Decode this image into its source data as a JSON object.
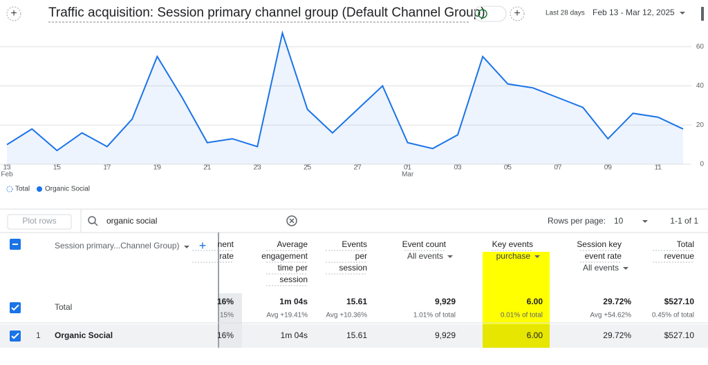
{
  "header": {
    "title": "Traffic acquisition: Session primary channel group (Default Channel Group)",
    "date_preset": "Last 28 days",
    "date_range": "Feb 13 - Mar 12, 2025"
  },
  "chart_data": {
    "type": "line",
    "categories": [
      {
        "day": "13",
        "month": "Feb"
      },
      null,
      {
        "day": "15"
      },
      null,
      {
        "day": "17"
      },
      null,
      {
        "day": "19"
      },
      null,
      {
        "day": "21"
      },
      null,
      {
        "day": "23"
      },
      null,
      {
        "day": "25"
      },
      null,
      {
        "day": "27"
      },
      null,
      {
        "day": "01",
        "month": "Mar"
      },
      null,
      {
        "day": "03"
      },
      null,
      {
        "day": "05"
      },
      null,
      {
        "day": "07"
      },
      null,
      {
        "day": "09"
      },
      null,
      {
        "day": "11"
      },
      null
    ],
    "series": [
      {
        "name": "Organic Social",
        "color": "#1a73e8",
        "values": [
          10,
          18,
          7,
          16,
          9,
          23,
          55,
          34,
          11,
          13,
          9,
          67,
          28,
          16,
          28,
          40,
          11,
          8,
          15,
          55,
          41,
          39,
          34,
          29,
          13,
          26,
          24,
          18
        ]
      }
    ],
    "total_legend": "Total",
    "ylim": [
      0,
      68
    ],
    "yticks": [
      0,
      20,
      40,
      60
    ],
    "grid": true
  },
  "table": {
    "plot_rows": "Plot rows",
    "search": "organic social",
    "rows_per_page_label": "Rows per page:",
    "rows_per_page": "10",
    "pagination": "1-1 of 1",
    "dimension_header": "Session primary...Channel Group)",
    "columns": [
      {
        "lines": [
          "nent",
          "rate"
        ]
      },
      {
        "lines": [
          "Average",
          "engagement",
          "time per",
          "session"
        ]
      },
      {
        "lines": [
          "Events",
          "per",
          "session"
        ]
      },
      {
        "lines": [
          "Event count"
        ],
        "sub": "All events"
      },
      {
        "lines": [
          "Key events"
        ],
        "sub": "purchase"
      },
      {
        "lines": [
          "Session key",
          "event rate"
        ],
        "sub": "All events"
      },
      {
        "lines": [
          "Total",
          "revenue"
        ]
      }
    ],
    "total": {
      "label": "Total",
      "cells": [
        [
          "16%",
          "15%"
        ],
        [
          "1m 04s",
          "Avg +19.41%"
        ],
        [
          "15.61",
          "Avg +10.36%"
        ],
        [
          "9,929",
          "1.01% of total"
        ],
        [
          "6.00",
          "0.01% of total"
        ],
        [
          "29.72%",
          "Avg +54.62%"
        ],
        [
          "$527.10",
          "0.45% of total"
        ]
      ]
    },
    "rows": [
      {
        "index": "1",
        "label": "Organic Social",
        "cells": [
          "16%",
          "1m 04s",
          "15.61",
          "9,929",
          "6.00",
          "29.72%",
          "$527.10"
        ]
      }
    ]
  }
}
